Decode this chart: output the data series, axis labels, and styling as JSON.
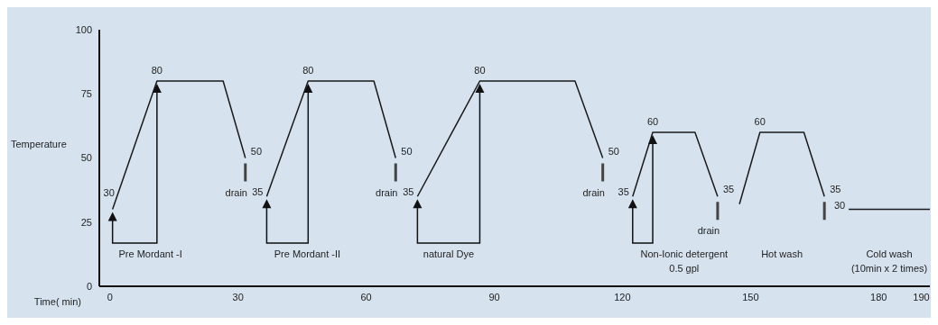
{
  "chart_data": {
    "type": "line",
    "ylabel": "Temperature",
    "xlabel": "Time( min)",
    "xlim": [
      -2.5,
      192
    ],
    "xticks": [
      0,
      30,
      60,
      90,
      120,
      150,
      180,
      190
    ],
    "ylim": [
      0,
      100
    ],
    "yticks": [
      0,
      25,
      50,
      75,
      100
    ],
    "grid": false,
    "marker": "none",
    "line_style": "solid",
    "series": [
      {
        "color": "#1a1a1a",
        "x": [
          0.6,
          11,
          26.5,
          31.7
        ],
        "values": [
          30,
          80,
          80,
          50
        ],
        "value_labels": [
          "30",
          "80",
          null,
          "50"
        ]
      },
      {
        "color": "#1a1a1a",
        "x": [
          36.7,
          46.4,
          61.8,
          66.9
        ],
        "values": [
          35,
          80,
          80,
          50
        ],
        "value_labels": [
          "35",
          "80",
          null,
          "50"
        ]
      },
      {
        "color": "#1a1a1a",
        "x": [
          72,
          86.6,
          108.9,
          115.4
        ],
        "values": [
          35,
          80,
          80,
          50
        ],
        "value_labels": [
          "35",
          "80",
          null,
          "50"
        ]
      },
      {
        "color": "#1a1a1a",
        "x": [
          122.4,
          127.1,
          137,
          142.3
        ],
        "values": [
          35,
          60,
          60,
          35
        ],
        "value_labels": [
          "35",
          "60",
          null,
          "35"
        ]
      },
      {
        "color": "#1a1a1a",
        "x": [
          147.4,
          152.2,
          162.5,
          167.3
        ],
        "values": [
          32,
          60,
          60,
          35
        ],
        "value_labels": [
          null,
          "60",
          null,
          "35"
        ]
      },
      {
        "color": "#1a1a1a",
        "x": [
          173,
          192
        ],
        "values": [
          30,
          30
        ],
        "value_labels": [
          "30",
          null
        ]
      }
    ],
    "annotations": [
      "Pre Mordant -I",
      "Pre Mordant -II",
      "natural Dye",
      "Non-Ionic detergent\n0.5 gpl",
      "Hot wash",
      "Cold wash\n(10min x 2 times)",
      "drain",
      "drain",
      "drain",
      "drain"
    ]
  }
}
